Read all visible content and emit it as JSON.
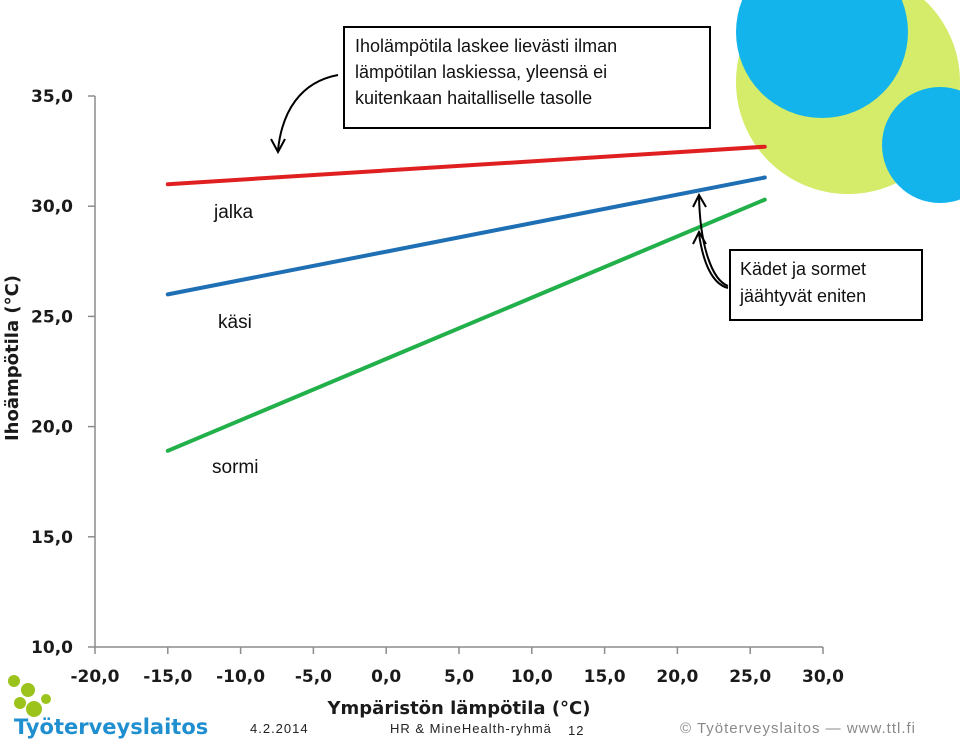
{
  "chart_data": {
    "type": "line",
    "title": "",
    "xlabel": "Ympäristön lämpötila (°C)",
    "ylabel": "Ihoämpötila (°C)",
    "xlim": [
      -20,
      30
    ],
    "ylim": [
      10,
      35
    ],
    "x_ticks": [
      "-20,0",
      "-15,0",
      "-10,0",
      "-5,0",
      "0,0",
      "5,0",
      "10,0",
      "15,0",
      "20,0",
      "25,0",
      "30,0"
    ],
    "y_ticks": [
      "10,0",
      "15,0",
      "20,0",
      "25,0",
      "30,0",
      "35,0"
    ],
    "x_tick_values": [
      -20,
      -15,
      -10,
      -5,
      0,
      5,
      10,
      15,
      20,
      25,
      30
    ],
    "y_tick_values": [
      10,
      15,
      20,
      25,
      30,
      35
    ],
    "grid": false,
    "series": [
      {
        "name": "jalka",
        "color": "#e02020",
        "x": [
          -15,
          26
        ],
        "y": [
          31.0,
          32.7
        ]
      },
      {
        "name": "käsi",
        "color": "#1f6fb5",
        "x": [
          -15,
          26
        ],
        "y": [
          26.0,
          31.3
        ]
      },
      {
        "name": "sormi",
        "color": "#22b04b",
        "x": [
          -15,
          26
        ],
        "y": [
          18.9,
          30.3
        ]
      }
    ],
    "annotations": [
      {
        "line1": "Iholämpötila laskee lievästi ilman",
        "line2": "lämpötilan laskiessa, yleensä ei",
        "line3": "kuitenkaan haitalliselle tasolle"
      },
      {
        "line1": "Kädet ja sormet",
        "line2": "jäähtyvät eniten"
      }
    ]
  },
  "footer": {
    "logo": "Työterveyslaitos",
    "date": "4.2.2014",
    "group": "HR & MineHealth-ryhmä",
    "page": "12",
    "copyright": "© Työterveyslaitos — www.ttl.fi"
  },
  "colors": {
    "circle_lime": "#d4ec6a",
    "circle_cyan": "#13b4ec",
    "logo_green": "#9cc31c",
    "logo_blue": "#1f8fd0"
  }
}
